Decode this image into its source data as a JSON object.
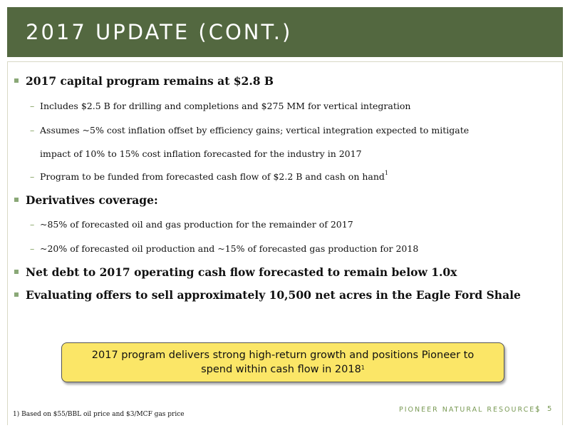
{
  "title": "2017 UPDATE (CONT.)",
  "bullets": [
    {
      "text": "2017 capital program remains at $2.8 B",
      "subs": [
        "Includes $2.5 B for drilling and completions and $275 MM for vertical integration",
        "Assumes ~5% cost inflation offset by efficiency gains; vertical integration expected to mitigate",
        "impact of 10% to 15% cost inflation forecasted for the industry in 2017",
        "Program to be funded from forecasted cash flow of $2.2 B and cash on hand"
      ],
      "footnote_marker": "1"
    },
    {
      "text": "Derivatives coverage:",
      "subs": [
        "~85% of forecasted oil and gas production for the remainder of 2017",
        "~20% of forecasted oil production and ~15% of forecasted gas production for 2018"
      ]
    },
    {
      "text": "Net debt to 2017 operating cash flow forecasted to remain below 1.0x"
    },
    {
      "text": "Evaluating offers to sell approximately 10,500 net acres in the Eagle Ford Shale"
    }
  ],
  "callout": {
    "line1": "2017 program delivers strong high-return growth and positions Pioneer to",
    "line2": "spend within cash flow in 2018",
    "marker": "1"
  },
  "footnote": "1)  Based on $55/BBL oil price and $3/MCF gas price",
  "brand": "PIONEER NATURAL RESOURCES",
  "separator": "|",
  "page_number": "5",
  "colors": {
    "header": "#536840",
    "accent": "#7a9a55",
    "callout": "#fbe667"
  }
}
